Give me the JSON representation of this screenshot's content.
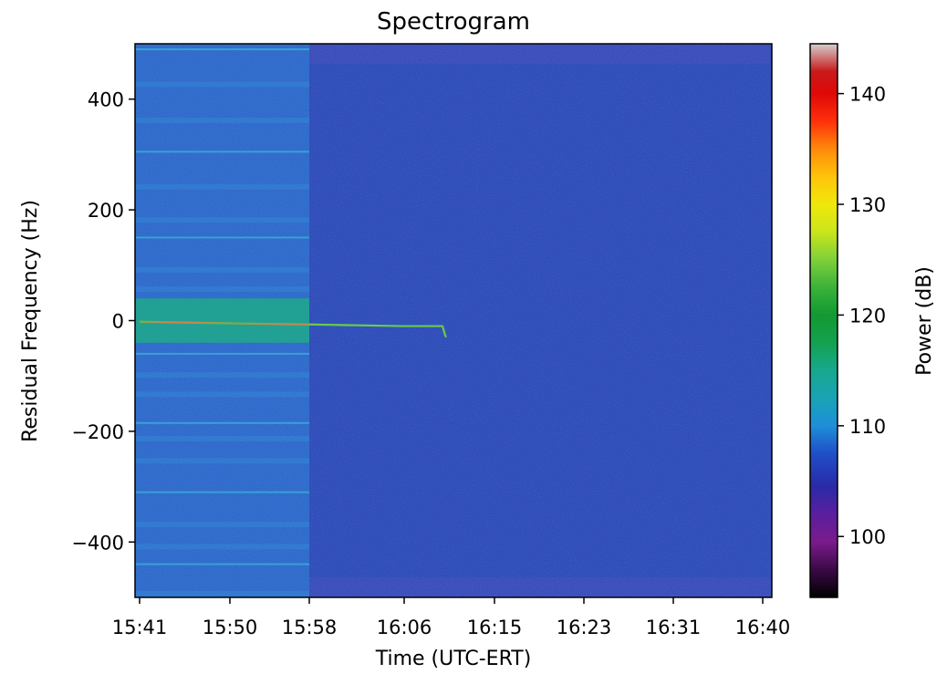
{
  "chart_data": {
    "type": "heatmap",
    "title": "Spectrogram",
    "xlabel": "Time (UTC-ERT)",
    "ylabel": "Residual Frequency (Hz)",
    "colorbar_label": "Power (dB)",
    "x_ticks": [
      "15:41",
      "15:50",
      "15:58",
      "16:06",
      "16:15",
      "16:23",
      "16:31",
      "16:40"
    ],
    "y_ticks": [
      400,
      200,
      0,
      -200,
      -400
    ],
    "y_tick_labels": [
      "400",
      "200",
      "0",
      "−200",
      "−400"
    ],
    "ylim": [
      -500,
      500
    ],
    "colorbar_ticks": [
      140,
      130,
      120,
      110,
      100
    ],
    "colorbar_range": [
      94.5,
      144.5
    ],
    "colormap": "nipy_spectral",
    "background_level_db": {
      "before_15_58": 106,
      "after_15_58": 102
    },
    "signal_trace": {
      "name": "carrier",
      "times": [
        "15:41",
        "15:50",
        "15:58",
        "16:06",
        "16:09"
      ],
      "frequency_hz": [
        -2,
        -5,
        -7,
        -10,
        -30
      ],
      "power_db": [
        123,
        122,
        120,
        118,
        117
      ]
    },
    "bands": {
      "strong_band_hz": [
        -40,
        40
      ],
      "strong_band_db": 114,
      "strong_band_end_time": "15:58"
    },
    "grid": false
  }
}
